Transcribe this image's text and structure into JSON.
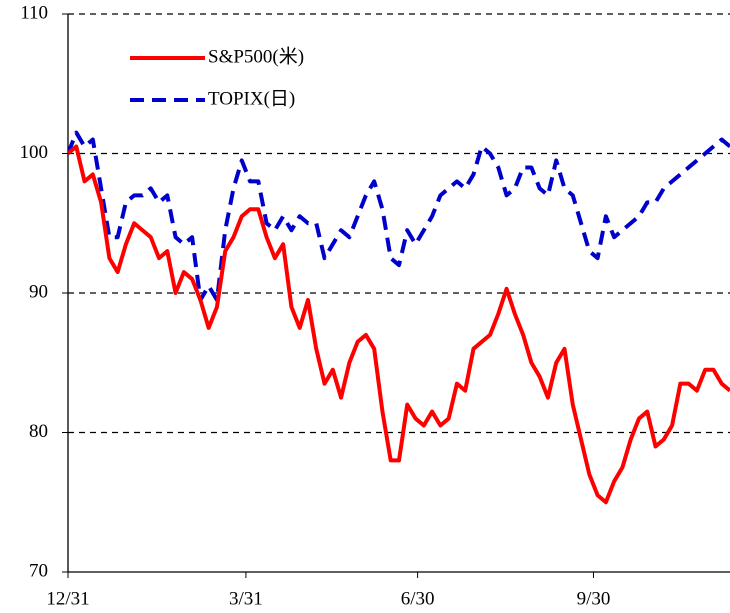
{
  "chart_data": {
    "type": "line",
    "x": [
      0,
      4,
      8,
      12,
      16,
      20,
      24,
      28,
      32,
      36,
      40,
      44,
      48,
      52,
      56,
      60,
      64,
      68,
      72,
      76,
      80,
      84,
      88,
      92,
      96,
      100,
      104,
      108,
      112,
      116,
      120,
      124,
      128,
      132,
      136,
      140,
      144,
      148,
      152,
      156,
      160,
      164,
      168,
      172,
      176,
      180,
      184,
      188,
      192,
      196,
      200,
      204,
      208,
      212,
      216,
      220,
      224,
      228,
      232,
      236,
      240,
      244,
      248,
      252,
      256,
      260,
      264,
      268,
      272,
      276,
      280,
      284,
      288,
      292,
      296,
      300,
      304,
      308,
      312,
      316,
      320
    ],
    "xlim": [
      0,
      320
    ],
    "xticks": [
      {
        "value": 0,
        "label": "12/31"
      },
      {
        "value": 86,
        "label": "3/31"
      },
      {
        "value": 169,
        "label": "6/30"
      },
      {
        "value": 254,
        "label": "9/30"
      }
    ],
    "ylim": [
      70,
      110
    ],
    "yticks": [
      70,
      80,
      90,
      100,
      110
    ],
    "grid": true,
    "legend": "top-left",
    "series": [
      {
        "name": "S&P500(米)",
        "color": "#ff0000",
        "dashed": false,
        "values": [
          100,
          100.5,
          98,
          98.5,
          96.5,
          92.5,
          91.5,
          93.5,
          95,
          94.5,
          94,
          92.5,
          93,
          90,
          91.5,
          91,
          89.5,
          87.5,
          89,
          93,
          94,
          95.5,
          96,
          96,
          94,
          92.5,
          93.5,
          89,
          87.5,
          89.5,
          86,
          83.5,
          84.5,
          82.5,
          85,
          86.5,
          87,
          86,
          81.5,
          78,
          78,
          82,
          81,
          80.5,
          81.5,
          80.5,
          81,
          83.5,
          83,
          86,
          86.5,
          87,
          88.5,
          90.3,
          88.5,
          87,
          85,
          84,
          82.5,
          85,
          86,
          82,
          79.5,
          77,
          75.5,
          75,
          76.5,
          77.5,
          79.5,
          81,
          81.5,
          79,
          79.5,
          80.5,
          83.5,
          83.5,
          83,
          84.5,
          84.5,
          83.5,
          83
        ]
      },
      {
        "name": "TOPIX(日)",
        "color": "#0000cc",
        "dashed": true,
        "values": [
          100,
          101.5,
          100.5,
          101,
          97.5,
          94,
          94,
          96.5,
          97,
          97,
          97.5,
          96.5,
          97,
          94,
          93.5,
          94,
          89.5,
          90.5,
          89.5,
          94.5,
          97.5,
          99.5,
          98,
          98,
          95,
          94.5,
          95.5,
          94.5,
          95.5,
          95,
          95,
          92.5,
          93.5,
          94.5,
          94,
          95.5,
          97,
          98,
          96,
          92.5,
          92,
          94.5,
          93.5,
          94.5,
          95.5,
          97,
          97.5,
          98,
          97.5,
          98.5,
          100.5,
          100,
          99,
          97,
          97.5,
          99,
          99,
          97.5,
          97,
          99.5,
          97.5,
          97,
          95,
          93,
          92.5,
          95.5,
          94,
          94.5,
          95,
          95.5,
          96.5,
          96.5,
          97.5,
          98,
          98.5,
          99,
          99.5,
          100,
          100.5,
          101,
          100.5
        ]
      }
    ]
  }
}
